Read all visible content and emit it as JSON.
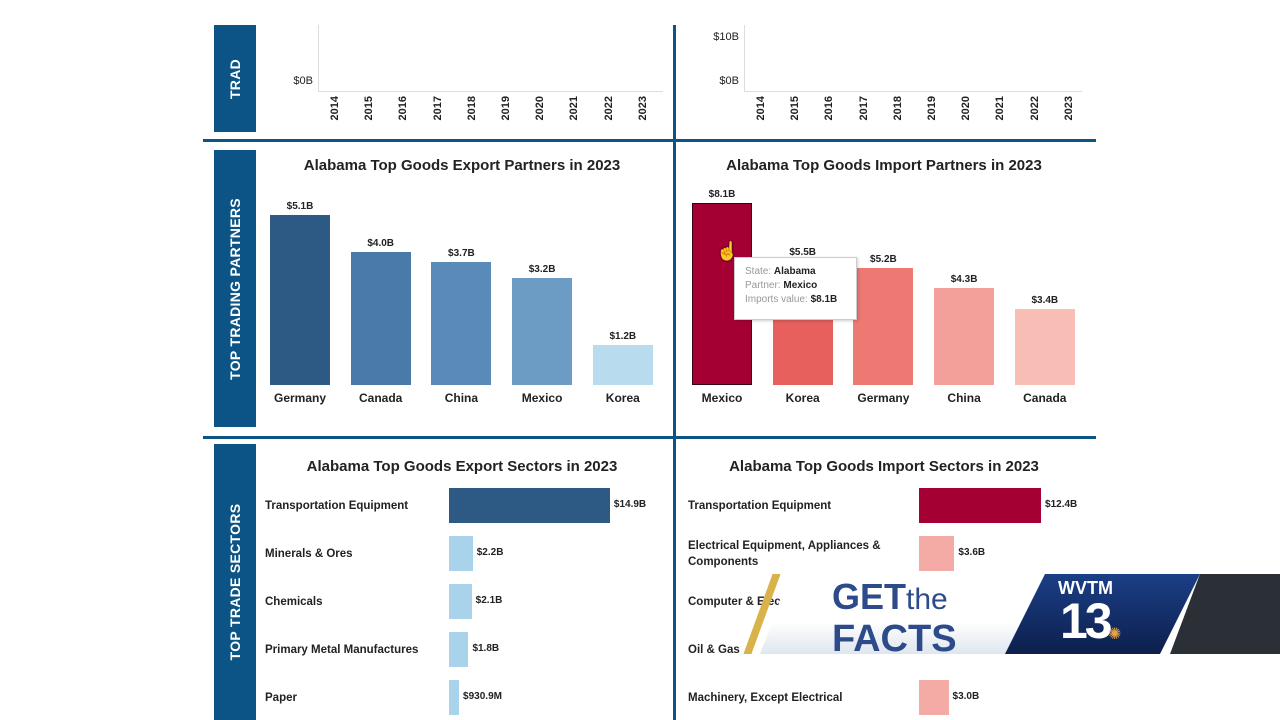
{
  "strips": [
    "TRAD",
    "TOP TRADING PARTNERS",
    "TOP TRADE SECTORS"
  ],
  "trend_left": {
    "yticks": [
      "$0B"
    ],
    "years": [
      "2014",
      "2015",
      "2016",
      "2017",
      "2018",
      "2019",
      "2020",
      "2021",
      "2022",
      "2023"
    ]
  },
  "trend_right": {
    "yticks": [
      "$10B",
      "$0B"
    ],
    "years": [
      "2014",
      "2015",
      "2016",
      "2017",
      "2018",
      "2019",
      "2020",
      "2021",
      "2022",
      "2023"
    ]
  },
  "chart_data": [
    {
      "type": "bar",
      "title": "Alabama Top Goods Export Partners in 2023",
      "categories": [
        "Germany",
        "Canada",
        "China",
        "Mexico",
        "Korea"
      ],
      "values": [
        5.1,
        4.0,
        3.7,
        3.2,
        1.2
      ],
      "labels": [
        "$5.1B",
        "$4.0B",
        "$3.7B",
        "$3.2B",
        "$1.2B"
      ],
      "colors": [
        "#2c5a84",
        "#4a7aa8",
        "#5a8ab8",
        "#6c9cc4",
        "#b8dcee"
      ]
    },
    {
      "type": "bar",
      "title": "Alabama Top Goods Import Partners in 2023",
      "categories": [
        "Mexico",
        "Korea",
        "Germany",
        "China",
        "Canada"
      ],
      "values": [
        8.1,
        5.5,
        5.2,
        4.3,
        3.4
      ],
      "labels": [
        "$8.1B",
        "$5.5B",
        "$5.2B",
        "$4.3B",
        "$3.4B"
      ],
      "colors": [
        "#a50034",
        "#e8605e",
        "#ec7a72",
        "#f3a09a",
        "#f8bdb5"
      ]
    },
    {
      "type": "bar",
      "orientation": "horizontal",
      "title": "Alabama Top Goods Export Sectors in 2023",
      "categories": [
        "Transportation Equipment",
        "Minerals & Ores",
        "Chemicals",
        "Primary Metal Manufactures",
        "Paper"
      ],
      "values": [
        14.9,
        2.2,
        2.1,
        1.8,
        0.9309
      ],
      "labels": [
        "$14.9B",
        "$2.2B",
        "$2.1B",
        "$1.8B",
        "$930.9M"
      ],
      "colors": [
        "#2c5a84",
        "#a9d3ea"
      ]
    },
    {
      "type": "bar",
      "orientation": "horizontal",
      "title": "Alabama Top Goods Import Sectors in 2023",
      "categories": [
        "Transportation Equipment",
        "Electrical Equipment, Appliances & Components",
        "Computer & Elec",
        "Oil & Gas",
        "Machinery, Except Electrical"
      ],
      "values": [
        12.4,
        3.6,
        null,
        null,
        3.0
      ],
      "labels": [
        "$12.4B",
        "$3.6B",
        "",
        "",
        "$3.0B"
      ],
      "colors": [
        "#a50034",
        "#f4aaa5"
      ]
    }
  ],
  "tooltip": {
    "state_label": "State:",
    "state": "Alabama",
    "partner_label": "Partner:",
    "partner": "Mexico",
    "value_label": "Imports value:",
    "value": "$8.1B"
  },
  "overlay": {
    "segment_title": "GET the FACTS",
    "get": "GET",
    "the": "the",
    "facts": "FACTS",
    "station": "WVTM",
    "channel": "13"
  }
}
